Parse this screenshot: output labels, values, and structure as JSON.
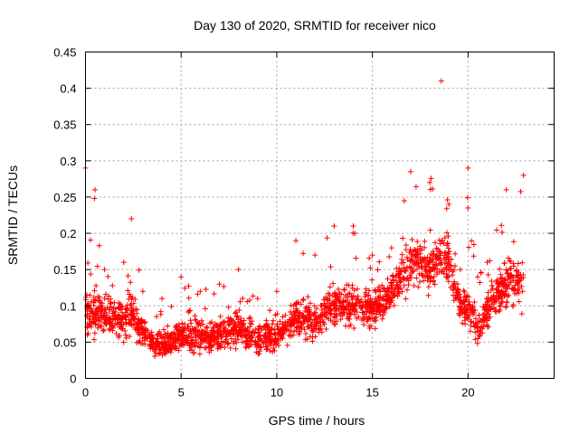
{
  "chart_data": {
    "type": "scatter",
    "title": "Day 130 of 2020, SRMTID for receiver nico",
    "xlabel": "GPS time / hours",
    "ylabel": "SRMTID / TECUs",
    "xlim": [
      0,
      24.5
    ],
    "ylim": [
      0,
      0.45
    ],
    "xticks": [
      0,
      5,
      10,
      15,
      20
    ],
    "xtick_labels": [
      "0",
      "5",
      "10",
      "15",
      "20"
    ],
    "yticks": [
      0,
      0.05,
      0.1,
      0.15,
      0.2,
      0.25,
      0.3,
      0.35,
      0.4,
      0.45
    ],
    "ytick_labels": [
      "0",
      "0.05",
      "0.1",
      "0.15",
      "0.2",
      "0.25",
      "0.3",
      "0.35",
      "0.4",
      "0.45"
    ],
    "grid": true,
    "marker": "plus",
    "color": "#ff0000",
    "series": [
      {
        "name": "SRMTID",
        "x_range": [
          0,
          22.9
        ],
        "approx_points": 2200,
        "trend": [
          {
            "hour": 0.0,
            "median": 0.09,
            "spread": 0.045,
            "max": 0.29
          },
          {
            "hour": 0.5,
            "median": 0.09,
            "spread": 0.04,
            "max": 0.26
          },
          {
            "hour": 1.0,
            "median": 0.085,
            "spread": 0.035,
            "max": 0.15
          },
          {
            "hour": 2.0,
            "median": 0.08,
            "spread": 0.035,
            "max": 0.16
          },
          {
            "hour": 2.4,
            "median": 0.095,
            "spread": 0.05,
            "max": 0.22
          },
          {
            "hour": 3.0,
            "median": 0.06,
            "spread": 0.03,
            "max": 0.12
          },
          {
            "hour": 4.0,
            "median": 0.045,
            "spread": 0.025,
            "max": 0.11
          },
          {
            "hour": 5.0,
            "median": 0.06,
            "spread": 0.03,
            "max": 0.14
          },
          {
            "hour": 6.0,
            "median": 0.055,
            "spread": 0.03,
            "max": 0.12
          },
          {
            "hour": 7.0,
            "median": 0.06,
            "spread": 0.03,
            "max": 0.13
          },
          {
            "hour": 8.0,
            "median": 0.07,
            "spread": 0.03,
            "max": 0.15
          },
          {
            "hour": 9.0,
            "median": 0.055,
            "spread": 0.03,
            "max": 0.11
          },
          {
            "hour": 10.0,
            "median": 0.06,
            "spread": 0.03,
            "max": 0.12
          },
          {
            "hour": 11.0,
            "median": 0.085,
            "spread": 0.035,
            "max": 0.19
          },
          {
            "hour": 12.0,
            "median": 0.075,
            "spread": 0.035,
            "max": 0.17
          },
          {
            "hour": 13.0,
            "median": 0.1,
            "spread": 0.035,
            "max": 0.21
          },
          {
            "hour": 14.0,
            "median": 0.1,
            "spread": 0.035,
            "max": 0.21
          },
          {
            "hour": 15.0,
            "median": 0.095,
            "spread": 0.035,
            "max": 0.17
          },
          {
            "hour": 16.0,
            "median": 0.12,
            "spread": 0.035,
            "max": 0.18
          },
          {
            "hour": 17.0,
            "median": 0.16,
            "spread": 0.045,
            "max": 0.285
          },
          {
            "hour": 18.0,
            "median": 0.15,
            "spread": 0.045,
            "max": 0.27
          },
          {
            "hour": 18.6,
            "median": 0.17,
            "spread": 0.05,
            "max": 0.41
          },
          {
            "hour": 19.0,
            "median": 0.16,
            "spread": 0.045,
            "max": 0.24
          },
          {
            "hour": 19.6,
            "median": 0.1,
            "spread": 0.03,
            "max": 0.15
          },
          {
            "hour": 20.0,
            "median": 0.1,
            "spread": 0.04,
            "max": 0.29
          },
          {
            "hour": 20.5,
            "median": 0.065,
            "spread": 0.03,
            "max": 0.14
          },
          {
            "hour": 21.0,
            "median": 0.1,
            "spread": 0.035,
            "max": 0.16
          },
          {
            "hour": 22.0,
            "median": 0.13,
            "spread": 0.05,
            "max": 0.26
          },
          {
            "hour": 22.9,
            "median": 0.13,
            "spread": 0.05,
            "max": 0.28
          }
        ]
      }
    ]
  }
}
